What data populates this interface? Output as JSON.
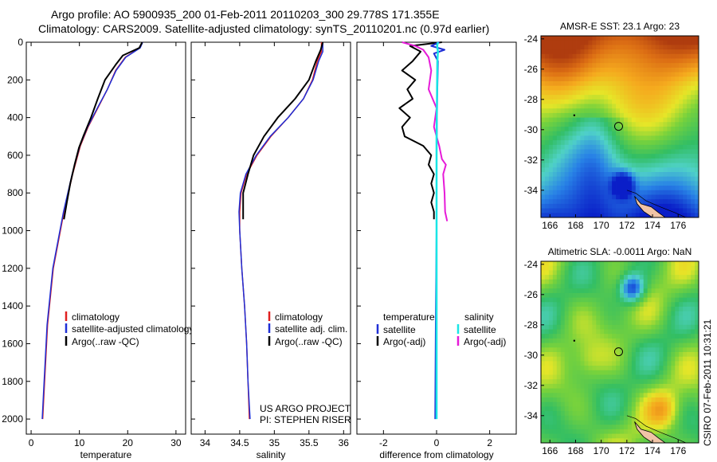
{
  "header": {
    "line1": "Argo profile: AO 5900935_200 01-Feb-2011 20110203_300 29.778S 171.355E",
    "line2": "Climatology: CARS2009. Satellite-adjusted climatology: synTS_20110201.nc (0.97d earlier)"
  },
  "colors": {
    "climatology": "#e02020",
    "satellite": "#1f2fd6",
    "argo": "#000000",
    "salinity_sat": "#19e6e6",
    "salinity_argo": "#e61ad8"
  },
  "chart_data": [
    {
      "type": "line",
      "id": "temperature",
      "xlabel": "temperature",
      "xlim": [
        -1,
        32
      ],
      "xticks": [
        "0",
        "10",
        "20",
        "30"
      ],
      "ylim": [
        0,
        2080
      ],
      "yticks": [
        "0",
        "200",
        "400",
        "600",
        "800",
        "1000",
        "1200",
        "1400",
        "1600",
        "1800",
        "2000"
      ],
      "legend": [
        "climatology",
        "satellite-adjusted climatology",
        "Argo(..raw -QC)"
      ],
      "series": [
        {
          "name": "climatology",
          "depth": [
            0,
            30,
            80,
            150,
            250,
            350,
            450,
            550,
            700,
            900,
            1200,
            1500,
            1800,
            2000
          ],
          "values": [
            23.0,
            22.5,
            19.5,
            17.5,
            15.8,
            13.8,
            11.8,
            10.2,
            8.6,
            6.8,
            4.6,
            3.4,
            2.8,
            2.4
          ]
        },
        {
          "name": "satellite-adjusted climatology",
          "depth": [
            0,
            30,
            80,
            150,
            250,
            350,
            450,
            550,
            700,
            900,
            1200,
            1500,
            1800,
            2000
          ],
          "values": [
            23.1,
            22.6,
            19.6,
            17.6,
            15.8,
            13.7,
            11.7,
            10.1,
            8.5,
            6.7,
            4.5,
            3.3,
            2.7,
            2.3
          ]
        },
        {
          "name": "Argo(..raw -QC)",
          "depth": [
            0,
            30,
            70,
            120,
            200,
            300,
            400,
            500,
            560,
            650,
            750,
            850,
            940
          ],
          "values": [
            23.0,
            22.4,
            19.0,
            17.5,
            15.3,
            13.8,
            12.4,
            10.8,
            9.9,
            9.0,
            8.1,
            7.4,
            6.8
          ]
        }
      ]
    },
    {
      "type": "line",
      "id": "salinity",
      "xlabel": "salinity",
      "xlim": [
        33.8,
        36.1
      ],
      "xticks": [
        "34",
        "34.5",
        "35",
        "35.5",
        "36"
      ],
      "ylim": [
        0,
        2080
      ],
      "legend": [
        "climatology",
        "satellite adj. clim.",
        "Argo(..raw -QC)"
      ],
      "annotation": [
        "US ARGO PROJECT",
        "PI: STEPHEN RISER"
      ],
      "series": [
        {
          "name": "climatology",
          "depth": [
            0,
            50,
            100,
            200,
            300,
            400,
            500,
            600,
            700,
            800,
            900,
            1000,
            1200,
            1400,
            1600,
            1800,
            2000
          ],
          "values": [
            35.68,
            35.68,
            35.62,
            35.55,
            35.42,
            35.2,
            34.95,
            34.75,
            34.6,
            34.52,
            34.5,
            34.5,
            34.53,
            34.57,
            34.6,
            34.62,
            34.64
          ]
        },
        {
          "name": "satellite adj. clim.",
          "depth": [
            0,
            50,
            100,
            200,
            300,
            400,
            500,
            600,
            700,
            800,
            900,
            1000,
            1200,
            1400,
            1600,
            1800,
            2000
          ],
          "values": [
            35.7,
            35.7,
            35.64,
            35.56,
            35.42,
            35.2,
            34.94,
            34.74,
            34.59,
            34.51,
            34.49,
            34.5,
            34.53,
            34.57,
            34.6,
            34.62,
            34.65
          ]
        },
        {
          "name": "Argo(..raw -QC)",
          "depth": [
            0,
            40,
            100,
            200,
            300,
            400,
            500,
            600,
            700,
            800,
            900,
            940
          ],
          "values": [
            35.7,
            35.67,
            35.6,
            35.5,
            35.3,
            35.05,
            34.85,
            34.7,
            34.62,
            34.55,
            34.55,
            34.55
          ]
        }
      ]
    },
    {
      "type": "line",
      "id": "difference",
      "xlabel": "difference from climatology",
      "xlim": [
        -3,
        3
      ],
      "xticks": [
        "-2",
        "0",
        "2"
      ],
      "ylim": [
        0,
        2080
      ],
      "legend_title_temp": "temperature",
      "legend_title_sal": "salinity",
      "legend": [
        "satellite",
        "Argo(-adj)",
        "satellite",
        "Argo(-adj)"
      ],
      "series": [
        {
          "name": "temperature satellite",
          "depth": [
            0,
            20,
            40,
            60,
            100,
            300,
            600,
            1000,
            1500,
            2000
          ],
          "values": [
            0.1,
            -0.2,
            0.3,
            -0.1,
            0.05,
            0.02,
            0.0,
            0.0,
            -0.03,
            -0.05
          ]
        },
        {
          "name": "temperature Argo(-adj)",
          "depth": [
            0,
            20,
            50,
            100,
            150,
            200,
            250,
            300,
            350,
            400,
            450,
            500,
            550,
            600,
            650,
            700,
            750,
            800,
            850,
            900,
            940
          ],
          "values": [
            0.2,
            -1.0,
            -0.6,
            -0.9,
            -1.3,
            -0.8,
            -1.1,
            -0.9,
            -1.4,
            -1.0,
            -1.3,
            -1.2,
            -0.5,
            -0.2,
            -0.3,
            -0.1,
            -0.2,
            -0.1,
            -0.2,
            -0.1,
            -0.1
          ]
        },
        {
          "name": "salinity satellite",
          "depth": [
            0,
            20,
            50,
            100,
            500,
            1000,
            1500,
            2000
          ],
          "values": [
            0.05,
            0.02,
            0.05,
            0.03,
            0.0,
            0.0,
            0.0,
            0.0
          ]
        },
        {
          "name": "salinity Argo(-adj)",
          "depth": [
            0,
            20,
            40,
            80,
            150,
            250,
            350,
            450,
            550,
            620,
            650,
            700,
            800,
            900,
            950
          ],
          "values": [
            -1.3,
            -0.8,
            -0.5,
            -0.3,
            -0.2,
            -0.3,
            0.0,
            -0.1,
            0.1,
            0.2,
            0.35,
            0.25,
            0.3,
            0.32,
            0.4
          ]
        }
      ]
    },
    {
      "type": "heatmap",
      "id": "sst-map",
      "title": "AMSR-E SST: 23.1  Argo: 23",
      "xlim": [
        165.3,
        177.6
      ],
      "ylim": [
        -35.8,
        -23.8
      ],
      "xticks": [
        "166",
        "168",
        "170",
        "172",
        "174",
        "176"
      ],
      "yticks": [
        "-24",
        "-26",
        "-28",
        "-30",
        "-32",
        "-34"
      ],
      "float_position": {
        "lon": 171.355,
        "lat": -29.778
      }
    },
    {
      "type": "heatmap",
      "id": "sla-map",
      "title": "Altimetric SLA: -0.0011  Argo: NaN",
      "xlim": [
        165.3,
        177.6
      ],
      "ylim": [
        -35.8,
        -23.8
      ],
      "xticks": [
        "166",
        "168",
        "170",
        "172",
        "174",
        "176"
      ],
      "yticks": [
        "-24",
        "-26",
        "-28",
        "-30",
        "-32",
        "-34"
      ],
      "float_position": {
        "lon": 171.355,
        "lat": -29.778
      }
    }
  ],
  "footer": {
    "credit": "CSIRO 07-Feb-2011 10:31:21"
  }
}
